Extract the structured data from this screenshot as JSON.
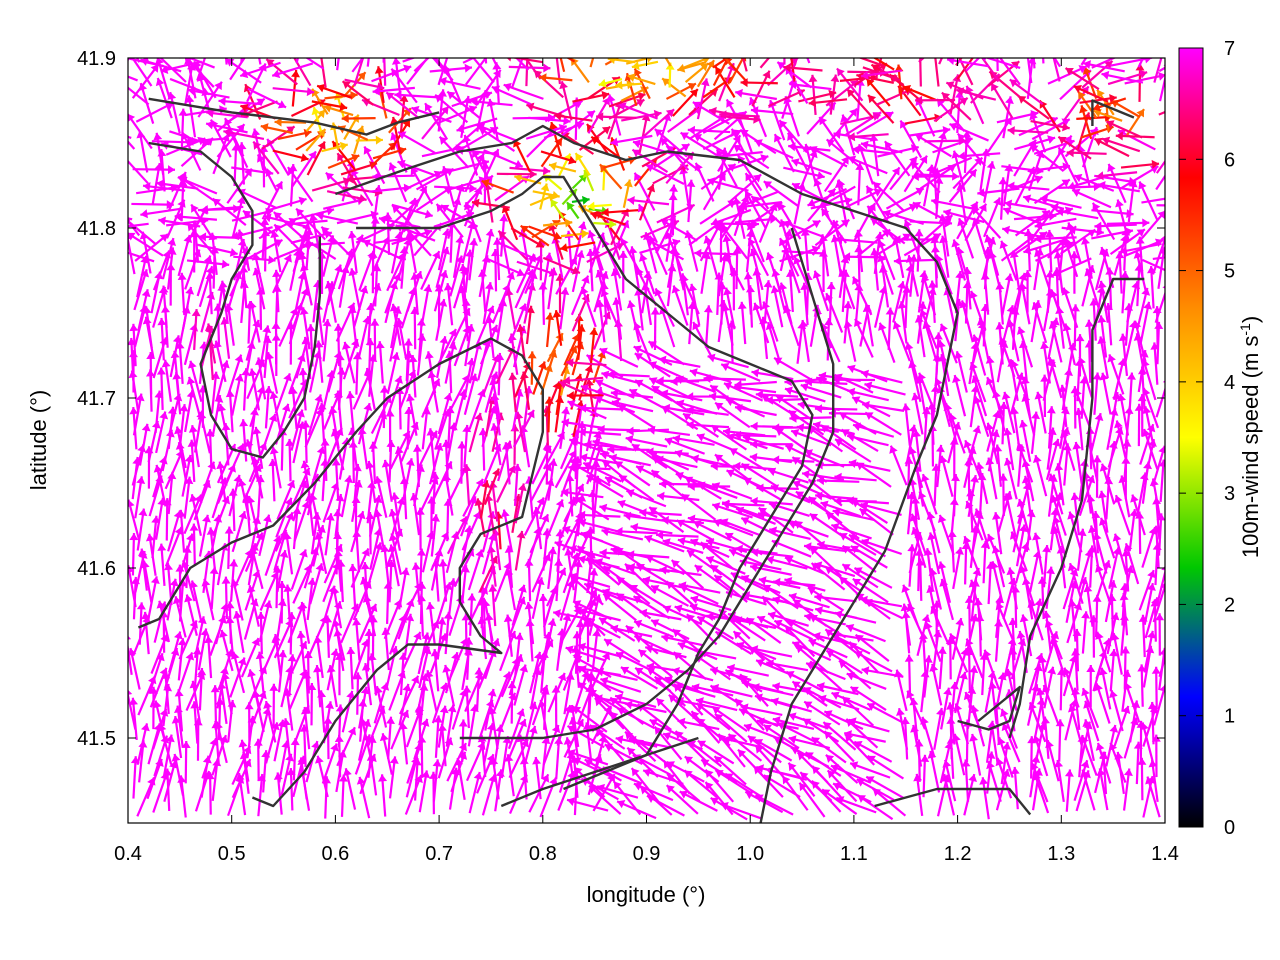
{
  "chart_data": {
    "type": "vector-field",
    "xlabel": "longitude (°)",
    "ylabel": "latitude (°)",
    "xlim": [
      0.4,
      1.4
    ],
    "ylim": [
      41.45,
      41.9
    ],
    "xticks": [
      "0.4",
      "0.5",
      "0.6",
      "0.7",
      "0.8",
      "0.9",
      "1.0",
      "1.1",
      "1.2",
      "1.3",
      "1.4"
    ],
    "yticks": [
      "41.5",
      "41.6",
      "41.7",
      "41.8",
      "41.9"
    ],
    "grid": false,
    "colorbar": {
      "label_main": "100m-wind speed (m s",
      "label_sup": "-1",
      "label_end": ")",
      "range": [
        0,
        7
      ],
      "ticks": [
        "0",
        "1",
        "2",
        "3",
        "4",
        "5",
        "6",
        "7"
      ],
      "colors": [
        "#000000",
        "#0000ff",
        "#00c800",
        "#ffff00",
        "#ff8c00",
        "#ff0000",
        "#ff00ff"
      ]
    },
    "wind_vectors_description": "dense field of 100m wind arrows colored by speed; strong flow (~7 m/s, magenta) dominates south and sides, weak flow (0-4 m/s) concentrated near the northern centre around lon 0.55-0.95, lat 41.78-41.9",
    "terrain_contours": [
      [
        [
          0.42,
          41.876
        ],
        [
          0.5,
          41.868
        ],
        [
          0.58,
          41.862
        ],
        [
          0.63,
          41.855
        ],
        [
          0.66,
          41.862
        ],
        [
          0.7,
          41.868
        ]
      ],
      [
        [
          0.42,
          41.85
        ],
        [
          0.47,
          41.845
        ],
        [
          0.5,
          41.83
        ],
        [
          0.52,
          41.81
        ],
        [
          0.52,
          41.79
        ],
        [
          0.5,
          41.77
        ],
        [
          0.49,
          41.75
        ],
        [
          0.47,
          41.72
        ],
        [
          0.48,
          41.69
        ],
        [
          0.5,
          41.67
        ],
        [
          0.53,
          41.665
        ],
        [
          0.55,
          41.68
        ],
        [
          0.57,
          41.7
        ],
        [
          0.58,
          41.73
        ],
        [
          0.585,
          41.76
        ],
        [
          0.585,
          41.795
        ]
      ],
      [
        [
          0.6,
          41.82
        ],
        [
          0.67,
          41.835
        ],
        [
          0.72,
          41.845
        ],
        [
          0.77,
          41.85
        ],
        [
          0.8,
          41.86
        ],
        [
          0.83,
          41.85
        ],
        [
          0.88,
          41.84
        ],
        [
          0.92,
          41.845
        ],
        [
          0.99,
          41.84
        ],
        [
          1.05,
          41.82
        ],
        [
          1.1,
          41.81
        ],
        [
          1.15,
          41.8
        ],
        [
          1.18,
          41.78
        ],
        [
          1.2,
          41.75
        ],
        [
          1.19,
          41.72
        ],
        [
          1.18,
          41.69
        ],
        [
          1.16,
          41.66
        ],
        [
          1.13,
          41.61
        ],
        [
          1.1,
          41.58
        ],
        [
          1.07,
          41.55
        ],
        [
          1.04,
          41.52
        ],
        [
          1.02,
          41.48
        ],
        [
          1.01,
          41.45
        ]
      ],
      [
        [
          0.62,
          41.8
        ],
        [
          0.7,
          41.8
        ],
        [
          0.75,
          41.81
        ],
        [
          0.78,
          41.82
        ],
        [
          0.8,
          41.83
        ],
        [
          0.82,
          41.83
        ],
        [
          0.85,
          41.8
        ],
        [
          0.88,
          41.77
        ],
        [
          0.92,
          41.75
        ],
        [
          0.96,
          41.73
        ],
        [
          1.0,
          41.72
        ],
        [
          1.04,
          41.71
        ],
        [
          1.06,
          41.69
        ],
        [
          1.05,
          41.66
        ],
        [
          1.02,
          41.63
        ],
        [
          0.99,
          41.6
        ],
        [
          0.97,
          41.57
        ],
        [
          0.95,
          41.55
        ],
        [
          0.93,
          41.52
        ],
        [
          0.9,
          41.49
        ],
        [
          0.86,
          41.48
        ],
        [
          0.82,
          41.47
        ]
      ],
      [
        [
          0.41,
          41.565
        ],
        [
          0.43,
          41.57
        ],
        [
          0.46,
          41.6
        ],
        [
          0.5,
          41.615
        ],
        [
          0.54,
          41.625
        ],
        [
          0.58,
          41.65
        ],
        [
          0.62,
          41.68
        ],
        [
          0.65,
          41.7
        ],
        [
          0.7,
          41.72
        ],
        [
          0.75,
          41.735
        ],
        [
          0.78,
          41.725
        ],
        [
          0.8,
          41.705
        ],
        [
          0.8,
          41.68
        ],
        [
          0.79,
          41.655
        ],
        [
          0.78,
          41.63
        ],
        [
          0.74,
          41.62
        ],
        [
          0.72,
          41.6
        ],
        [
          0.72,
          41.58
        ],
        [
          0.74,
          41.56
        ],
        [
          0.76,
          41.55
        ],
        [
          0.7,
          41.555
        ],
        [
          0.67,
          41.555
        ],
        [
          0.64,
          41.54
        ],
        [
          0.6,
          41.51
        ],
        [
          0.57,
          41.48
        ],
        [
          0.54,
          41.46
        ],
        [
          0.52,
          41.465
        ]
      ],
      [
        [
          0.72,
          41.5
        ],
        [
          0.8,
          41.5
        ],
        [
          0.85,
          41.505
        ],
        [
          0.9,
          41.52
        ],
        [
          0.94,
          41.54
        ],
        [
          0.97,
          41.56
        ],
        [
          1.0,
          41.59
        ],
        [
          1.03,
          41.62
        ],
        [
          1.06,
          41.65
        ],
        [
          1.08,
          41.68
        ],
        [
          1.08,
          41.72
        ],
        [
          1.06,
          41.76
        ],
        [
          1.04,
          41.8
        ]
      ],
      [
        [
          0.76,
          41.46
        ],
        [
          0.8,
          41.47
        ],
        [
          0.85,
          41.48
        ],
        [
          0.9,
          41.49
        ],
        [
          0.95,
          41.5
        ]
      ],
      [
        [
          1.25,
          41.5
        ],
        [
          1.26,
          41.52
        ],
        [
          1.27,
          41.56
        ],
        [
          1.3,
          41.6
        ],
        [
          1.32,
          41.64
        ],
        [
          1.33,
          41.7
        ],
        [
          1.33,
          41.74
        ],
        [
          1.35,
          41.77
        ],
        [
          1.38,
          41.77
        ]
      ],
      [
        [
          1.12,
          41.46
        ],
        [
          1.15,
          41.465
        ],
        [
          1.18,
          41.47
        ],
        [
          1.22,
          41.47
        ],
        [
          1.25,
          41.47
        ],
        [
          1.27,
          41.455
        ]
      ],
      [
        [
          1.2,
          41.51
        ],
        [
          1.23,
          41.505
        ],
        [
          1.25,
          41.51
        ],
        [
          1.26,
          41.53
        ],
        [
          1.25,
          41.525
        ],
        [
          1.22,
          41.51
        ]
      ],
      [
        [
          1.37,
          41.865
        ],
        [
          1.35,
          41.87
        ],
        [
          1.33,
          41.875
        ],
        [
          1.33,
          41.86
        ]
      ]
    ]
  }
}
